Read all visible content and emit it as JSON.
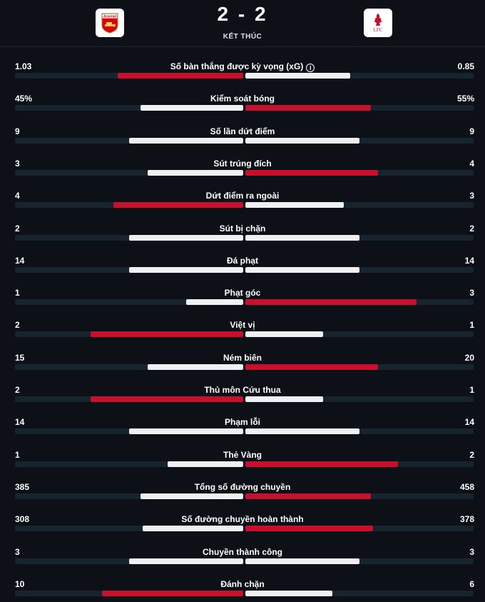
{
  "match": {
    "score": "2 - 2",
    "status": "KẾT THÚC",
    "home_team": {
      "name": "Arsenal",
      "logo_text": "Arsenal",
      "color": "#db0007"
    },
    "away_team": {
      "name": "Liverpool",
      "logo_text": "LFC",
      "color": "#c8102e"
    }
  },
  "colors": {
    "leader": "#c8102e",
    "other": "#eef0f2",
    "track": "#16242d",
    "background": "#0d1117"
  },
  "stats": [
    {
      "label": "Số bàn thắng được kỳ vọng (xG)",
      "home": "1.03",
      "away": "0.85",
      "home_share": 0.55,
      "away_share": 0.46,
      "info": true
    },
    {
      "label": "Kiểm soát bóng",
      "home": "45%",
      "away": "55%",
      "home_share": 0.45,
      "away_share": 0.55
    },
    {
      "label": "Số lần dứt điểm",
      "home": "9",
      "away": "9",
      "home_share": 0.5,
      "away_share": 0.5
    },
    {
      "label": "Sút trúng đích",
      "home": "3",
      "away": "4",
      "home_share": 0.42,
      "away_share": 0.58
    },
    {
      "label": "Dứt điểm ra ngoài",
      "home": "4",
      "away": "3",
      "home_share": 0.57,
      "away_share": 0.43
    },
    {
      "label": "Sút bị chặn",
      "home": "2",
      "away": "2",
      "home_share": 0.5,
      "away_share": 0.5
    },
    {
      "label": "Đá phạt",
      "home": "14",
      "away": "14",
      "home_share": 0.5,
      "away_share": 0.5
    },
    {
      "label": "Phạt góc",
      "home": "1",
      "away": "3",
      "home_share": 0.25,
      "away_share": 0.75
    },
    {
      "label": "Việt vị",
      "home": "2",
      "away": "1",
      "home_share": 0.67,
      "away_share": 0.34
    },
    {
      "label": "Ném biên",
      "home": "15",
      "away": "20",
      "home_share": 0.42,
      "away_share": 0.58
    },
    {
      "label": "Thủ môn Cứu thua",
      "home": "2",
      "away": "1",
      "home_share": 0.67,
      "away_share": 0.34
    },
    {
      "label": "Phạm lỗi",
      "home": "14",
      "away": "14",
      "home_share": 0.5,
      "away_share": 0.5
    },
    {
      "label": "Thẻ Vàng",
      "home": "1",
      "away": "2",
      "home_share": 0.33,
      "away_share": 0.67
    },
    {
      "label": "Tổng số đường chuyền",
      "home": "385",
      "away": "458",
      "home_share": 0.45,
      "away_share": 0.55
    },
    {
      "label": "Số đường chuyền hoàn thành",
      "home": "308",
      "away": "378",
      "home_share": 0.44,
      "away_share": 0.56
    },
    {
      "label": "Chuyền thành công",
      "home": "3",
      "away": "3",
      "home_share": 0.5,
      "away_share": 0.5
    },
    {
      "label": "Đánh chặn",
      "home": "10",
      "away": "6",
      "home_share": 0.62,
      "away_share": 0.38
    }
  ]
}
